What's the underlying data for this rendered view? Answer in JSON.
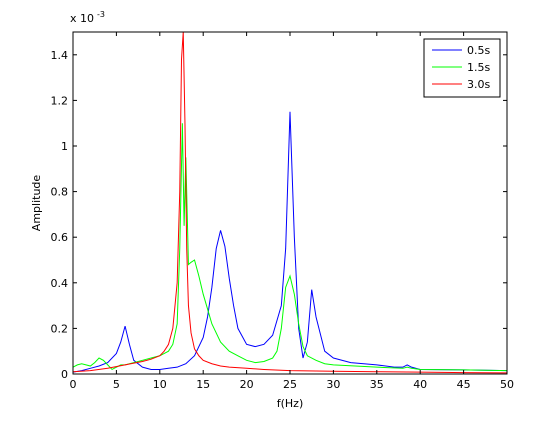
{
  "chart_data": {
    "type": "line",
    "title": "",
    "xlabel": "f(Hz)",
    "ylabel": "Amplitude",
    "y_multiplier": "x 10",
    "y_multiplier_exponent": "-3",
    "xlim": [
      0,
      50
    ],
    "ylim": [
      0,
      1.5
    ],
    "x_ticks": [
      0,
      5,
      10,
      15,
      20,
      25,
      30,
      35,
      40,
      45,
      50
    ],
    "x_tick_labels": [
      "0",
      "5",
      "10",
      "15",
      "20",
      "25",
      "30",
      "35",
      "40",
      "45",
      "50"
    ],
    "y_ticks": [
      0,
      0.2,
      0.4,
      0.6,
      0.8,
      1.0,
      1.2,
      1.4
    ],
    "y_tick_labels": [
      "0",
      "0.2",
      "0.4",
      "0.6",
      "0.8",
      "1",
      "1.2",
      "1.4"
    ],
    "grid": false,
    "legend_position": "top-right",
    "series": [
      {
        "name": "0.5s",
        "color": "#0000ff",
        "x": [
          0,
          1,
          2,
          3,
          4,
          5,
          5.5,
          6,
          6.5,
          7,
          8,
          9,
          10,
          11,
          12,
          13,
          14,
          15,
          15.5,
          16,
          16.5,
          17,
          17.5,
          18,
          18.5,
          19,
          20,
          21,
          22,
          23,
          24,
          24.5,
          25,
          25.5,
          26,
          26.5,
          27,
          27.5,
          28,
          29,
          30,
          32,
          35,
          37,
          38,
          38.5,
          39,
          40,
          45,
          50
        ],
        "y": [
          0.008,
          0.015,
          0.025,
          0.035,
          0.05,
          0.09,
          0.14,
          0.21,
          0.13,
          0.06,
          0.03,
          0.02,
          0.02,
          0.025,
          0.03,
          0.045,
          0.08,
          0.16,
          0.25,
          0.38,
          0.55,
          0.63,
          0.56,
          0.42,
          0.3,
          0.2,
          0.13,
          0.12,
          0.13,
          0.17,
          0.3,
          0.55,
          1.15,
          0.6,
          0.2,
          0.07,
          0.14,
          0.37,
          0.25,
          0.1,
          0.07,
          0.05,
          0.04,
          0.03,
          0.03,
          0.04,
          0.03,
          0.02,
          0.018,
          0.015
        ]
      },
      {
        "name": "1.5s",
        "color": "#00ff00",
        "x": [
          0,
          0.5,
          1,
          1.5,
          2,
          2.5,
          3,
          3.5,
          4,
          4.5,
          5,
          5.5,
          6,
          7,
          8,
          9,
          10,
          11,
          11.5,
          12,
          12.3,
          12.6,
          12.8,
          13,
          13.3,
          13.6,
          14,
          14.5,
          15,
          16,
          17,
          18,
          19,
          20,
          21,
          22,
          23,
          23.5,
          24,
          24.5,
          25,
          25.5,
          26,
          26.5,
          27,
          28,
          29,
          30,
          35,
          38,
          38.5,
          39,
          40,
          45,
          50
        ],
        "y": [
          0.03,
          0.04,
          0.045,
          0.04,
          0.035,
          0.05,
          0.07,
          0.06,
          0.04,
          0.02,
          0.03,
          0.04,
          0.04,
          0.05,
          0.06,
          0.07,
          0.08,
          0.1,
          0.13,
          0.22,
          0.55,
          1.1,
          0.65,
          0.95,
          0.48,
          0.49,
          0.5,
          0.43,
          0.35,
          0.22,
          0.14,
          0.1,
          0.08,
          0.06,
          0.05,
          0.055,
          0.07,
          0.1,
          0.2,
          0.38,
          0.43,
          0.35,
          0.22,
          0.12,
          0.08,
          0.06,
          0.045,
          0.04,
          0.03,
          0.025,
          0.03,
          0.025,
          0.02,
          0.018,
          0.015
        ]
      },
      {
        "name": "3.0s",
        "color": "#ff0000",
        "x": [
          0,
          2,
          4,
          6,
          8,
          9,
          10,
          10.5,
          11,
          11.5,
          12,
          12.3,
          12.5,
          12.7,
          12.9,
          13.1,
          13.3,
          13.6,
          14,
          14.5,
          15,
          16,
          17,
          18,
          20,
          22,
          25,
          30,
          35,
          40,
          45,
          50
        ],
        "y": [
          0.01,
          0.015,
          0.025,
          0.04,
          0.055,
          0.065,
          0.08,
          0.1,
          0.13,
          0.2,
          0.4,
          0.8,
          1.38,
          1.5,
          1.1,
          0.55,
          0.3,
          0.18,
          0.11,
          0.08,
          0.06,
          0.045,
          0.035,
          0.03,
          0.025,
          0.02,
          0.015,
          0.012,
          0.01,
          0.008,
          0.006,
          0.005
        ]
      }
    ]
  }
}
